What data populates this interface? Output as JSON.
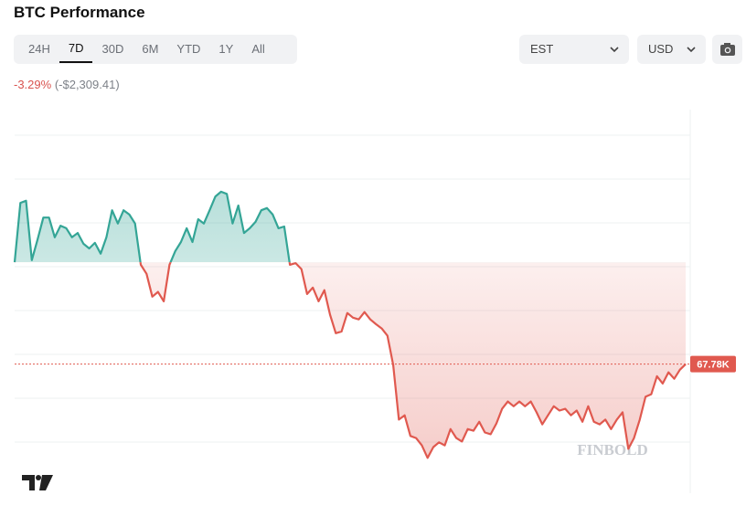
{
  "header": {
    "title": "BTC Performance",
    "tabs": [
      "24H",
      "7D",
      "30D",
      "6M",
      "YTD",
      "1Y",
      "All"
    ],
    "active_tab": "7D",
    "timezone": "EST",
    "currency": "USD",
    "change_percent": "-3.29%",
    "change_amount": "(-$2,309.41)"
  },
  "watermark": "FINBOLD",
  "chart_data": {
    "type": "line",
    "ylim": [
      65.5,
      73.7
    ],
    "up_color": "#34a596",
    "down_color": "#e0594f",
    "price_marker": {
      "value": 67.78,
      "label": "67.78K"
    },
    "values": [
      70.15,
      71.53,
      71.58,
      70.2,
      70.68,
      71.19,
      71.19,
      70.73,
      71.0,
      70.94,
      70.73,
      70.83,
      70.58,
      70.47,
      70.6,
      70.35,
      70.73,
      71.36,
      71.05,
      71.36,
      71.26,
      71.05,
      70.09,
      69.88,
      69.35,
      69.46,
      69.24,
      70.09,
      70.41,
      70.62,
      70.94,
      70.62,
      71.15,
      71.05,
      71.36,
      71.68,
      71.79,
      71.74,
      71.05,
      71.47,
      70.83,
      70.94,
      71.09,
      71.36,
      71.41,
      71.26,
      70.94,
      70.98,
      70.09,
      70.13,
      69.99,
      69.41,
      69.56,
      69.24,
      69.5,
      68.93,
      68.5,
      68.54,
      68.97,
      68.86,
      68.82,
      68.99,
      68.82,
      68.71,
      68.61,
      68.44,
      67.76,
      66.49,
      66.59,
      66.11,
      66.06,
      65.89,
      65.6,
      65.85,
      65.96,
      65.89,
      66.27,
      66.06,
      65.98,
      66.27,
      66.23,
      66.44,
      66.19,
      66.15,
      66.4,
      66.74,
      66.91,
      66.8,
      66.91,
      66.8,
      66.91,
      66.66,
      66.38,
      66.59,
      66.8,
      66.7,
      66.74,
      66.59,
      66.7,
      66.44,
      66.8,
      66.44,
      66.38,
      66.49,
      66.27,
      66.49,
      66.66,
      65.81,
      66.06,
      66.49,
      67.02,
      67.08,
      67.5,
      67.33,
      67.59,
      67.44,
      67.65,
      67.78
    ]
  }
}
